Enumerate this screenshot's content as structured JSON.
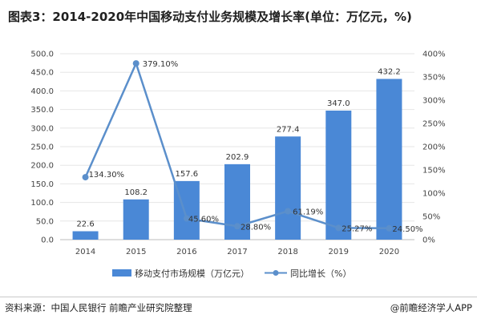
{
  "title": "图表3：2014-2020年中国移动支付业务规模及增长率(单位：万亿元，%)",
  "source": "资料来源：中国人民银行 前瞻产业研究院整理",
  "brand": "@前瞻经济学人APP",
  "colors": {
    "bar": "#4a88d6",
    "line": "#5b8fcb",
    "grid": "#e6e6e6"
  },
  "chart_data": {
    "type": "bar+line",
    "categories": [
      "2014",
      "2015",
      "2016",
      "2017",
      "2018",
      "2019",
      "2020"
    ],
    "series": [
      {
        "name": "移动支付市场规模（万亿元）",
        "type": "bar",
        "axis": "left",
        "values": [
          22.6,
          108.2,
          157.6,
          202.9,
          277.4,
          347.0,
          432.2
        ],
        "labels": [
          "22.6",
          "108.2",
          "157.6",
          "202.9",
          "277.4",
          "347.0",
          "432.2"
        ]
      },
      {
        "name": "同比增长（%）",
        "type": "line",
        "axis": "right",
        "values": [
          134.3,
          379.1,
          45.6,
          28.8,
          61.19,
          25.27,
          24.5
        ],
        "labels": [
          "134.30%",
          "379.10%",
          "45.60%",
          "28.80%",
          "61.19%",
          "25.27%",
          "24.50%"
        ]
      }
    ],
    "y_left": {
      "min": 0,
      "max": 500,
      "step": 50,
      "ticks": [
        "0.0",
        "50.0",
        "100.0",
        "150.0",
        "200.0",
        "250.0",
        "300.0",
        "350.0",
        "400.0",
        "450.0",
        "500.0"
      ]
    },
    "y_right": {
      "min": 0,
      "max": 400,
      "step": 50,
      "ticks": [
        "0%",
        "50%",
        "100%",
        "150%",
        "200%",
        "250%",
        "300%",
        "350%",
        "400%"
      ]
    },
    "legend": "bottom"
  }
}
